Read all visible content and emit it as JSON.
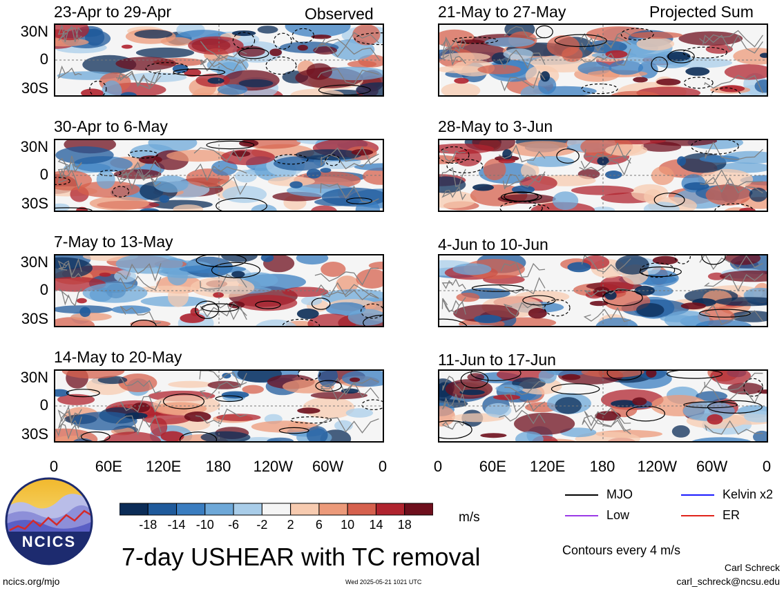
{
  "panels": [
    {
      "title": "23-Apr to 29-Apr",
      "tag": "Observed"
    },
    {
      "title": "30-Apr to 6-May",
      "tag": ""
    },
    {
      "title": "7-May to 13-May",
      "tag": ""
    },
    {
      "title": "14-May to 20-May",
      "tag": ""
    },
    {
      "title": "21-May to 27-May",
      "tag": "Projected Sum"
    },
    {
      "title": "28-May to 3-Jun",
      "tag": ""
    },
    {
      "title": "4-Jun to 10-Jun",
      "tag": ""
    },
    {
      "title": "11-Jun to 17-Jun",
      "tag": ""
    }
  ],
  "y_ticks": [
    "30N",
    "0",
    "30S"
  ],
  "x_ticks": [
    "0",
    "60E",
    "120E",
    "180",
    "120W",
    "60W",
    "0"
  ],
  "colorbar": {
    "ticks": [
      "-18",
      "-14",
      "-10",
      "-6",
      "-2",
      "2",
      "6",
      "10",
      "14",
      "18"
    ],
    "units": "m/s",
    "colors": [
      "#0b2c57",
      "#1f5a9b",
      "#3a7dc0",
      "#6ea8d8",
      "#a9cde9",
      "#f5f5f5",
      "#f7cbb0",
      "#ec9a7a",
      "#d6614e",
      "#b0242f",
      "#6e0f1d"
    ]
  },
  "legend": {
    "items": [
      {
        "label": "MJO",
        "color": "#000000"
      },
      {
        "label": "Kelvin x2",
        "color": "#1a1aff"
      },
      {
        "label": "Low",
        "color": "#9a39e6"
      },
      {
        "label": "ER",
        "color": "#e0221a"
      }
    ],
    "contour_note": "Contours every 4 m/s"
  },
  "logo_text": "NCICS",
  "main_title": "7-day USHEAR with TC removal",
  "footer": {
    "url": "ncics.org/mjo",
    "timestamp": "Wed 2025-05-21 1021 UTC",
    "author": "Carl Schreck",
    "email": "carl_schreck@ncsu.edu"
  }
}
